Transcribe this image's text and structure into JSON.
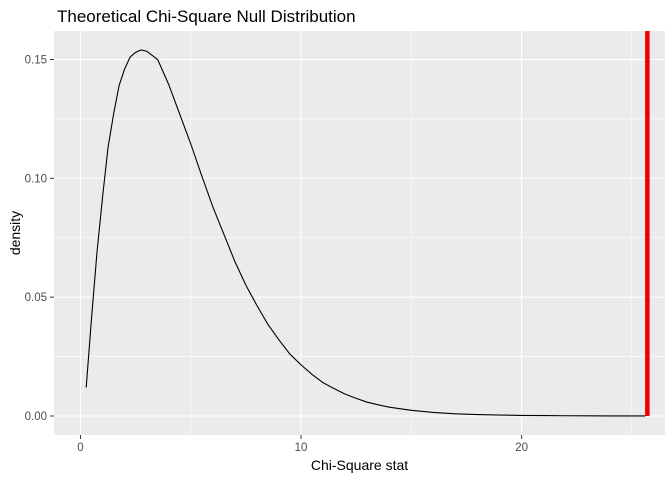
{
  "chart_data": {
    "type": "line",
    "title": "Theoretical Chi-Square Null Distribution",
    "xlabel": "Chi-Square stat",
    "ylabel": "density",
    "xlim": [
      -1.2,
      26.5
    ],
    "ylim": [
      -0.008,
      0.162
    ],
    "x_ticks": [
      0,
      10,
      20
    ],
    "x_tick_labels": [
      "0",
      "10",
      "20"
    ],
    "y_ticks": [
      0.0,
      0.05,
      0.1,
      0.15
    ],
    "y_tick_labels": [
      "0.00",
      "0.05",
      "0.10",
      "0.15"
    ],
    "grid": true,
    "legend": "none",
    "series": [
      {
        "x": [
          0.26,
          0.5,
          0.75,
          1.0,
          1.25,
          1.5,
          1.75,
          2.0,
          2.25,
          2.5,
          2.75,
          3.0,
          3.5,
          4.0,
          4.5,
          5.0,
          5.5,
          6.0,
          6.5,
          7.0,
          7.5,
          8.0,
          8.5,
          9.0,
          9.5,
          10.0,
          10.5,
          11.0,
          11.5,
          12.0,
          12.5,
          13.0,
          13.5,
          14.0,
          15.0,
          16.0,
          17.0,
          18.0,
          19.0,
          20.0,
          21.0,
          22.0,
          23.0,
          24.0,
          25.0,
          25.6
        ],
        "y": [
          0.012,
          0.041,
          0.069,
          0.092,
          0.113,
          0.127,
          0.139,
          0.146,
          0.151,
          0.153,
          0.154,
          0.1535,
          0.15,
          0.1395,
          0.127,
          0.1145,
          0.101,
          0.088,
          0.0765,
          0.065,
          0.055,
          0.0465,
          0.0385,
          0.032,
          0.026,
          0.0215,
          0.0175,
          0.014,
          0.0115,
          0.0092,
          0.0074,
          0.0058,
          0.0047,
          0.0037,
          0.0024,
          0.0015,
          0.0009,
          0.0006,
          0.0004,
          0.00025,
          0.00016,
          0.0001,
          6e-05,
          4e-05,
          2e-05,
          1e-05
        ],
        "color": "#000000"
      }
    ],
    "vline": {
      "x": 25.7,
      "color": "#ee0000"
    },
    "panel_color": "#ebebeb",
    "grid_color": "#ffffff"
  }
}
